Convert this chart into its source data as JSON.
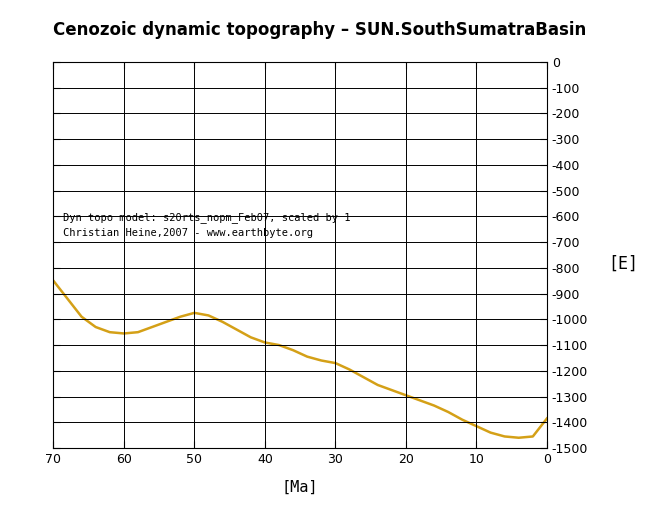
{
  "title": "Cenozoic dynamic topography – SUN.SouthSumatraBasin",
  "xlabel": "[Ma]",
  "ylabel": "[E]",
  "annotation_line1": "Dyn topo model: s20rts_nopm_Feb07, scaled by 1",
  "annotation_line2": "Christian Heine,2007 - www.earthbyte.org",
  "xlim": [
    70,
    0
  ],
  "ylim": [
    -1500,
    0
  ],
  "xticks": [
    70,
    60,
    50,
    40,
    30,
    20,
    10,
    0
  ],
  "yticks": [
    0,
    -100,
    -200,
    -300,
    -400,
    -500,
    -600,
    -700,
    -800,
    -900,
    -1000,
    -1100,
    -1200,
    -1300,
    -1400,
    -1500
  ],
  "line_color": "#D4A017",
  "line_width": 1.8,
  "background_color": "#ffffff",
  "x": [
    70,
    68,
    66,
    64,
    62,
    60,
    58,
    56,
    54,
    52,
    50,
    48,
    46,
    44,
    42,
    40,
    38,
    36,
    34,
    32,
    30,
    28,
    26,
    24,
    22,
    20,
    18,
    16,
    14,
    12,
    10,
    8,
    6,
    4,
    2,
    0
  ],
  "y": [
    -850,
    -920,
    -990,
    -1030,
    -1050,
    -1055,
    -1050,
    -1030,
    -1010,
    -990,
    -975,
    -985,
    -1010,
    -1040,
    -1070,
    -1090,
    -1100,
    -1120,
    -1145,
    -1160,
    -1170,
    -1195,
    -1225,
    -1255,
    -1275,
    -1295,
    -1315,
    -1335,
    -1360,
    -1390,
    -1415,
    -1440,
    -1455,
    -1460,
    -1455,
    -1385
  ]
}
